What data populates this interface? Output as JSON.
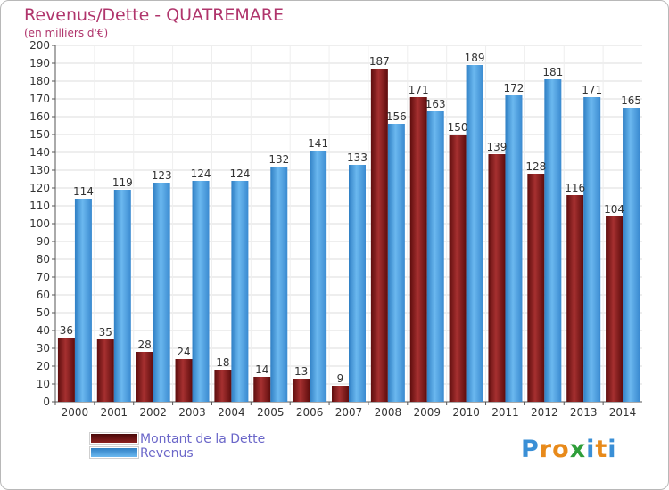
{
  "header": {
    "title": "Revenus/Dette - QUATREMARE",
    "subtitle": "(en milliers d'€)"
  },
  "chart_data": {
    "type": "bar",
    "categories": [
      "2000",
      "2001",
      "2002",
      "2003",
      "2004",
      "2005",
      "2006",
      "2007",
      "2008",
      "2009",
      "2010",
      "2011",
      "2012",
      "2013",
      "2014"
    ],
    "series": [
      {
        "name": "Montant de la Dette",
        "color": "#7e1a1a",
        "values": [
          36,
          35,
          28,
          24,
          18,
          14,
          13,
          9,
          187,
          171,
          150,
          139,
          128,
          116,
          104
        ]
      },
      {
        "name": "Revenus",
        "color": "#4ea6e6",
        "values": [
          114,
          119,
          123,
          124,
          124,
          132,
          141,
          133,
          156,
          163,
          189,
          172,
          181,
          171,
          165
        ]
      }
    ],
    "ylim": [
      0,
      200
    ],
    "ytick_step": 10,
    "grid": true,
    "legend_position": "bottom-left"
  },
  "legend": {
    "items": [
      {
        "label": "Montant de la Dette",
        "color": "#7e1a1a"
      },
      {
        "label": "Revenus",
        "color": "#4ea6e6"
      }
    ]
  },
  "logo": {
    "letters": [
      {
        "char": "P",
        "color": "#3a8fd6"
      },
      {
        "char": "r",
        "color": "#e88a1a"
      },
      {
        "char": "o",
        "color": "#e88a1a"
      },
      {
        "char": "x",
        "color": "#2f9e3a"
      },
      {
        "char": "i",
        "color": "#3a8fd6"
      },
      {
        "char": "t",
        "color": "#e88a1a"
      },
      {
        "char": "i",
        "color": "#3a8fd6"
      }
    ]
  }
}
